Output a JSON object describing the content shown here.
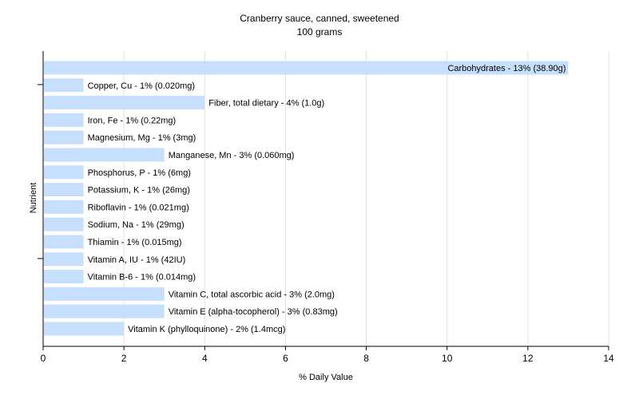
{
  "chart_data": {
    "type": "bar",
    "orientation": "horizontal",
    "title": "Cranberry sauce, canned, sweetened",
    "subtitle": "100 grams",
    "xlabel": "% Daily Value",
    "ylabel": "Nutrient",
    "xlim": [
      0,
      14
    ],
    "xticks": [
      "0",
      "2",
      "4",
      "6",
      "8",
      "10",
      "12",
      "14"
    ],
    "grid": "vertical",
    "bar_color": "#c5dffc",
    "categories": [
      "Carbohydrates",
      "Copper, Cu",
      "Fiber, total dietary",
      "Iron, Fe",
      "Magnesium, Mg",
      "Manganese, Mn",
      "Phosphorus, P",
      "Potassium, K",
      "Riboflavin",
      "Sodium, Na",
      "Thiamin",
      "Vitamin A, IU",
      "Vitamin B-6",
      "Vitamin C, total ascorbic acid",
      "Vitamin E (alpha-tocopherol)",
      "Vitamin K (phylloquinone)"
    ],
    "values": [
      13,
      1,
      4,
      1,
      1,
      3,
      1,
      1,
      1,
      1,
      1,
      1,
      1,
      3,
      3,
      2
    ],
    "labels": [
      "Carbohydrates - 13% (38.90g)",
      "Copper, Cu - 1% (0.020mg)",
      "Fiber, total dietary - 4% (1.0g)",
      "Iron, Fe - 1% (0.22mg)",
      "Magnesium, Mg - 1% (3mg)",
      "Manganese, Mn - 3% (0.060mg)",
      "Phosphorus, P - 1% (6mg)",
      "Potassium, K - 1% (26mg)",
      "Riboflavin - 1% (0.021mg)",
      "Sodium, Na - 1% (29mg)",
      "Thiamin - 1% (0.015mg)",
      "Vitamin A, IU - 1% (42IU)",
      "Vitamin B-6 - 1% (0.014mg)",
      "Vitamin C, total ascorbic acid - 3% (2.0mg)",
      "Vitamin E (alpha-tocopherol) - 3% (0.83mg)",
      "Vitamin K (phylloquinone) - 2% (1.4mcg)"
    ]
  }
}
